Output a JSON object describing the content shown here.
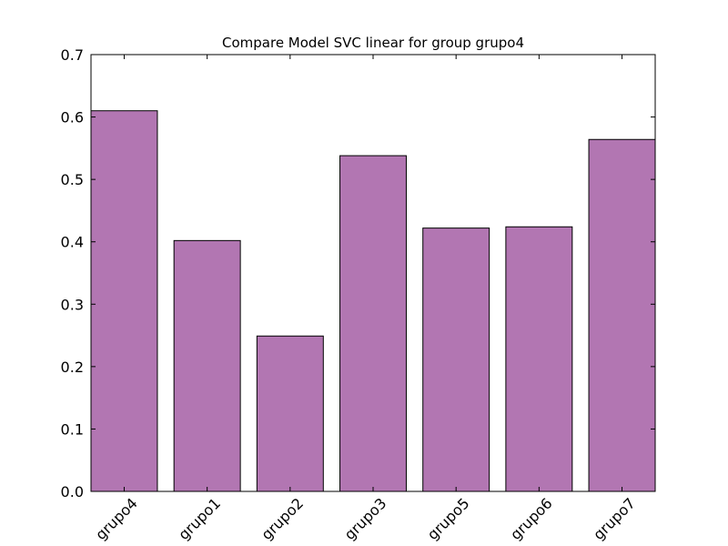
{
  "chart_data": {
    "type": "bar",
    "title": "Compare Model SVC linear for group grupo4",
    "xlabel": "",
    "ylabel": "",
    "categories": [
      "grupo4",
      "grupo1",
      "grupo2",
      "grupo3",
      "grupo5",
      "grupo6",
      "grupo7"
    ],
    "values": [
      0.61,
      0.402,
      0.249,
      0.538,
      0.422,
      0.424,
      0.564
    ],
    "ylim": [
      0.0,
      0.7
    ],
    "yticks": [
      "0.0",
      "0.1",
      "0.2",
      "0.3",
      "0.4",
      "0.5",
      "0.6",
      "0.7"
    ],
    "bar_color": "#b276b2",
    "grid": false,
    "xtick_rotation_deg": 45
  }
}
